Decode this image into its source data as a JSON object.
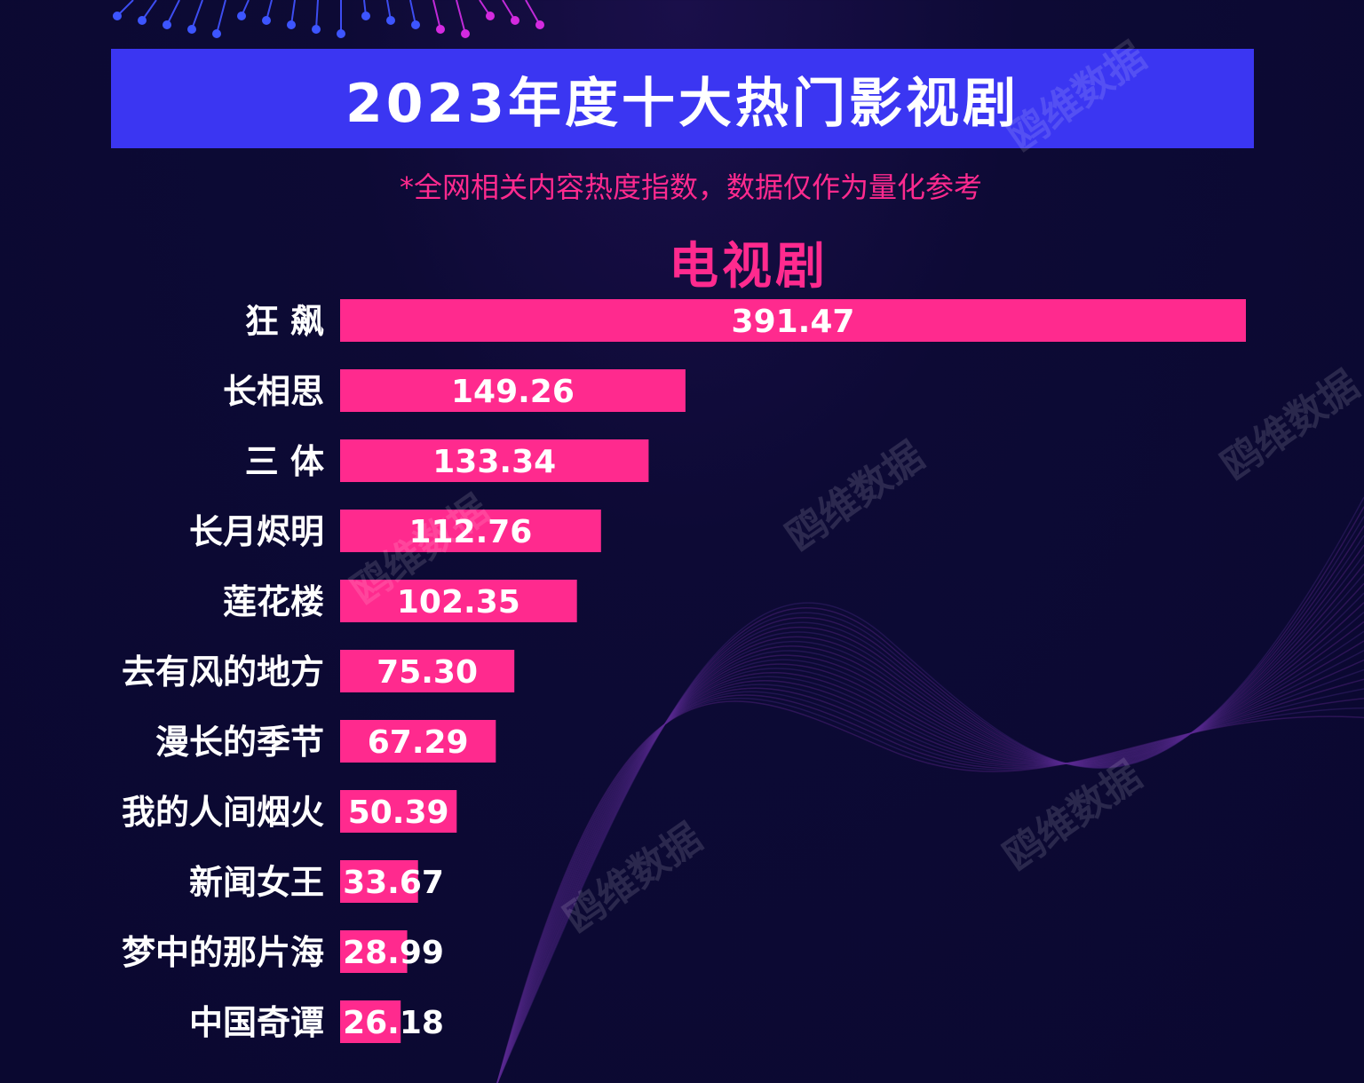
{
  "header": {
    "title": "2023年度十大热门影视剧",
    "subtitle": "*全网相关内容热度指数，数据仅作为量化参考"
  },
  "section_title": "电视剧",
  "watermark_text": "鸥维数据",
  "colors": {
    "title_bar": "#3b36f2",
    "accent": "#ff2a8e",
    "bar": "#ff2a8e",
    "background": "#0a0830"
  },
  "chart_data": {
    "type": "bar",
    "orientation": "horizontal",
    "title": "电视剧",
    "categories": [
      "狂 飙",
      "长相思",
      "三 体",
      "长月烬明",
      "莲花楼",
      "去有风的地方",
      "漫长的季节",
      "我的人间烟火",
      "新闻女王",
      "梦中的那片海",
      "中国奇谭"
    ],
    "values": [
      391.47,
      149.26,
      133.34,
      112.76,
      102.35,
      75.3,
      67.29,
      50.39,
      33.67,
      28.99,
      26.18
    ],
    "value_labels": [
      "391.47",
      "149.26",
      "133.34",
      "112.76",
      "102.35",
      "75.30",
      "67.29",
      "50.39",
      "33.67",
      "28.99",
      "26.18"
    ],
    "grid": false,
    "legend": "none"
  }
}
